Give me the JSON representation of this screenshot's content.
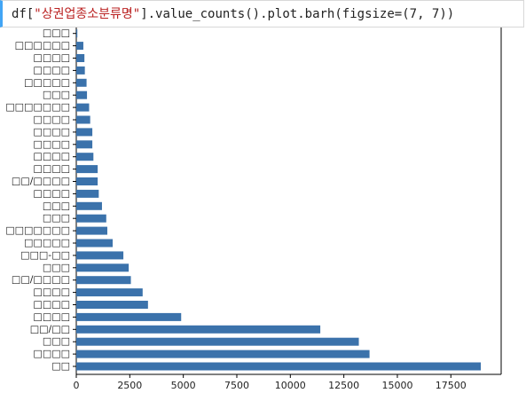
{
  "code": {
    "prefix": "df[",
    "string": "\"상권업종소분류명\"",
    "suffix": "].value_counts().plot.barh(figsize=(7, 7))"
  },
  "chart_data": {
    "type": "barh",
    "categories": [
      "□□",
      "□□□□",
      "□□□",
      "□□/□□",
      "□□□□",
      "□□□□",
      "□□□□",
      "□□/□□□□",
      "□□□",
      "□□□-□□",
      "□□□□□",
      "□□□□□□□",
      "□□□",
      "□□□",
      "□□□□",
      "□□/□□□□",
      "□□□□",
      "□□□□",
      "□□□□",
      "□□□□",
      "□□□□",
      "□□□□□□□",
      "□□□",
      "□□□□□",
      "□□□□",
      "□□□□",
      "□□□□□□",
      "□□□"
    ],
    "values": [
      18900,
      13700,
      13200,
      11400,
      4900,
      3350,
      3100,
      2550,
      2450,
      2200,
      1700,
      1450,
      1400,
      1200,
      1050,
      1000,
      1000,
      800,
      750,
      750,
      650,
      600,
      500,
      480,
      400,
      380,
      330,
      50
    ],
    "color": "#3b72ab",
    "xlim": [
      0,
      19850
    ],
    "xticks": [
      0,
      2500,
      5000,
      7500,
      10000,
      12500,
      15000,
      17500
    ]
  }
}
